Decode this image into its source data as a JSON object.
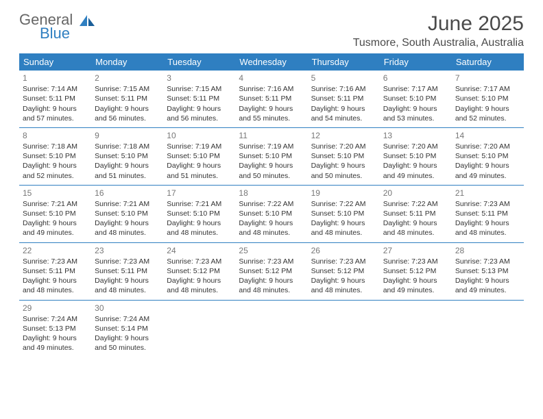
{
  "brand": {
    "part1": "General",
    "part2": "Blue"
  },
  "title": "June 2025",
  "location": "Tusmore, South Australia, Australia",
  "colors": {
    "header_bg": "#2f7fc1",
    "header_fg": "#ffffff",
    "rule": "#2f7fc1",
    "text": "#333333",
    "muted": "#777777"
  },
  "weekdays": [
    "Sunday",
    "Monday",
    "Tuesday",
    "Wednesday",
    "Thursday",
    "Friday",
    "Saturday"
  ],
  "weeks": [
    [
      {
        "n": "1",
        "sr": "Sunrise: 7:14 AM",
        "ss": "Sunset: 5:11 PM",
        "d1": "Daylight: 9 hours",
        "d2": "and 57 minutes."
      },
      {
        "n": "2",
        "sr": "Sunrise: 7:15 AM",
        "ss": "Sunset: 5:11 PM",
        "d1": "Daylight: 9 hours",
        "d2": "and 56 minutes."
      },
      {
        "n": "3",
        "sr": "Sunrise: 7:15 AM",
        "ss": "Sunset: 5:11 PM",
        "d1": "Daylight: 9 hours",
        "d2": "and 56 minutes."
      },
      {
        "n": "4",
        "sr": "Sunrise: 7:16 AM",
        "ss": "Sunset: 5:11 PM",
        "d1": "Daylight: 9 hours",
        "d2": "and 55 minutes."
      },
      {
        "n": "5",
        "sr": "Sunrise: 7:16 AM",
        "ss": "Sunset: 5:11 PM",
        "d1": "Daylight: 9 hours",
        "d2": "and 54 minutes."
      },
      {
        "n": "6",
        "sr": "Sunrise: 7:17 AM",
        "ss": "Sunset: 5:10 PM",
        "d1": "Daylight: 9 hours",
        "d2": "and 53 minutes."
      },
      {
        "n": "7",
        "sr": "Sunrise: 7:17 AM",
        "ss": "Sunset: 5:10 PM",
        "d1": "Daylight: 9 hours",
        "d2": "and 52 minutes."
      }
    ],
    [
      {
        "n": "8",
        "sr": "Sunrise: 7:18 AM",
        "ss": "Sunset: 5:10 PM",
        "d1": "Daylight: 9 hours",
        "d2": "and 52 minutes."
      },
      {
        "n": "9",
        "sr": "Sunrise: 7:18 AM",
        "ss": "Sunset: 5:10 PM",
        "d1": "Daylight: 9 hours",
        "d2": "and 51 minutes."
      },
      {
        "n": "10",
        "sr": "Sunrise: 7:19 AM",
        "ss": "Sunset: 5:10 PM",
        "d1": "Daylight: 9 hours",
        "d2": "and 51 minutes."
      },
      {
        "n": "11",
        "sr": "Sunrise: 7:19 AM",
        "ss": "Sunset: 5:10 PM",
        "d1": "Daylight: 9 hours",
        "d2": "and 50 minutes."
      },
      {
        "n": "12",
        "sr": "Sunrise: 7:20 AM",
        "ss": "Sunset: 5:10 PM",
        "d1": "Daylight: 9 hours",
        "d2": "and 50 minutes."
      },
      {
        "n": "13",
        "sr": "Sunrise: 7:20 AM",
        "ss": "Sunset: 5:10 PM",
        "d1": "Daylight: 9 hours",
        "d2": "and 49 minutes."
      },
      {
        "n": "14",
        "sr": "Sunrise: 7:20 AM",
        "ss": "Sunset: 5:10 PM",
        "d1": "Daylight: 9 hours",
        "d2": "and 49 minutes."
      }
    ],
    [
      {
        "n": "15",
        "sr": "Sunrise: 7:21 AM",
        "ss": "Sunset: 5:10 PM",
        "d1": "Daylight: 9 hours",
        "d2": "and 49 minutes."
      },
      {
        "n": "16",
        "sr": "Sunrise: 7:21 AM",
        "ss": "Sunset: 5:10 PM",
        "d1": "Daylight: 9 hours",
        "d2": "and 48 minutes."
      },
      {
        "n": "17",
        "sr": "Sunrise: 7:21 AM",
        "ss": "Sunset: 5:10 PM",
        "d1": "Daylight: 9 hours",
        "d2": "and 48 minutes."
      },
      {
        "n": "18",
        "sr": "Sunrise: 7:22 AM",
        "ss": "Sunset: 5:10 PM",
        "d1": "Daylight: 9 hours",
        "d2": "and 48 minutes."
      },
      {
        "n": "19",
        "sr": "Sunrise: 7:22 AM",
        "ss": "Sunset: 5:10 PM",
        "d1": "Daylight: 9 hours",
        "d2": "and 48 minutes."
      },
      {
        "n": "20",
        "sr": "Sunrise: 7:22 AM",
        "ss": "Sunset: 5:11 PM",
        "d1": "Daylight: 9 hours",
        "d2": "and 48 minutes."
      },
      {
        "n": "21",
        "sr": "Sunrise: 7:23 AM",
        "ss": "Sunset: 5:11 PM",
        "d1": "Daylight: 9 hours",
        "d2": "and 48 minutes."
      }
    ],
    [
      {
        "n": "22",
        "sr": "Sunrise: 7:23 AM",
        "ss": "Sunset: 5:11 PM",
        "d1": "Daylight: 9 hours",
        "d2": "and 48 minutes."
      },
      {
        "n": "23",
        "sr": "Sunrise: 7:23 AM",
        "ss": "Sunset: 5:11 PM",
        "d1": "Daylight: 9 hours",
        "d2": "and 48 minutes."
      },
      {
        "n": "24",
        "sr": "Sunrise: 7:23 AM",
        "ss": "Sunset: 5:12 PM",
        "d1": "Daylight: 9 hours",
        "d2": "and 48 minutes."
      },
      {
        "n": "25",
        "sr": "Sunrise: 7:23 AM",
        "ss": "Sunset: 5:12 PM",
        "d1": "Daylight: 9 hours",
        "d2": "and 48 minutes."
      },
      {
        "n": "26",
        "sr": "Sunrise: 7:23 AM",
        "ss": "Sunset: 5:12 PM",
        "d1": "Daylight: 9 hours",
        "d2": "and 48 minutes."
      },
      {
        "n": "27",
        "sr": "Sunrise: 7:23 AM",
        "ss": "Sunset: 5:12 PM",
        "d1": "Daylight: 9 hours",
        "d2": "and 49 minutes."
      },
      {
        "n": "28",
        "sr": "Sunrise: 7:23 AM",
        "ss": "Sunset: 5:13 PM",
        "d1": "Daylight: 9 hours",
        "d2": "and 49 minutes."
      }
    ],
    [
      {
        "n": "29",
        "sr": "Sunrise: 7:24 AM",
        "ss": "Sunset: 5:13 PM",
        "d1": "Daylight: 9 hours",
        "d2": "and 49 minutes."
      },
      {
        "n": "30",
        "sr": "Sunrise: 7:24 AM",
        "ss": "Sunset: 5:14 PM",
        "d1": "Daylight: 9 hours",
        "d2": "and 50 minutes."
      },
      null,
      null,
      null,
      null,
      null
    ]
  ]
}
